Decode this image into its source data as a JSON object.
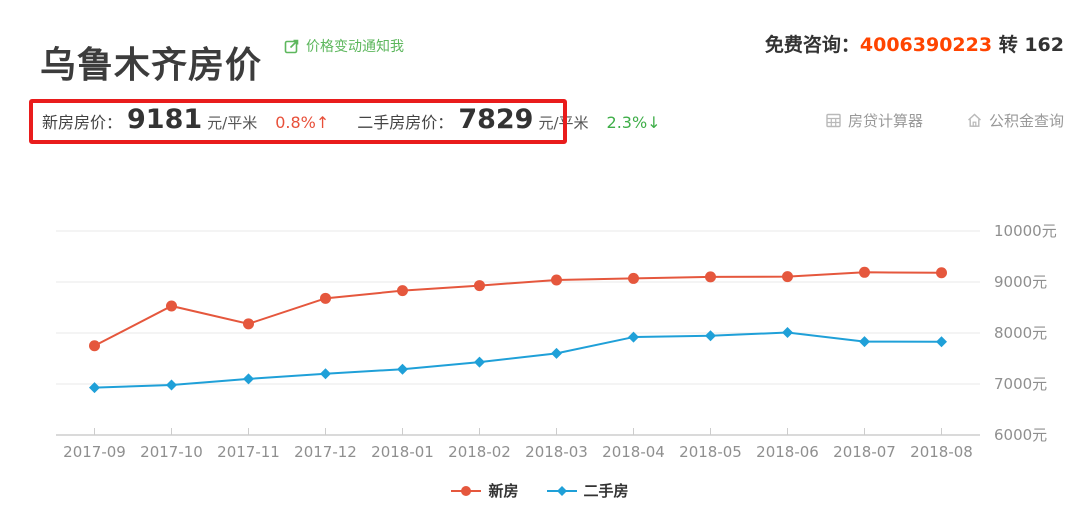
{
  "header": {
    "title": "乌鲁木齐房价",
    "notify_link_label": "价格变动通知我",
    "consult_label": "免费咨询：",
    "consult_phone": "4006390223",
    "consult_ext": "转 162"
  },
  "price_bar": {
    "new_label": "新房房价：",
    "new_price": "9181",
    "new_unit": "元/平米",
    "new_change": "0.8%↑",
    "second_label": "二手房房价：",
    "second_price": "7829",
    "second_unit": "元/平米",
    "second_change": "2.3%↓"
  },
  "tools": [
    {
      "label": "房贷计算器",
      "icon": "calculator-icon"
    },
    {
      "label": "公积金查询",
      "icon": "home-icon"
    }
  ],
  "chart_data": {
    "type": "line",
    "categories": [
      "2017-09",
      "2017-10",
      "2017-11",
      "2017-12",
      "2018-01",
      "2018-02",
      "2018-03",
      "2018-04",
      "2018-05",
      "2018-06",
      "2018-07",
      "2018-08"
    ],
    "series": [
      {
        "name": "新房",
        "marker": "circle",
        "color": "#e5573d",
        "values": [
          7750,
          8530,
          8180,
          8680,
          8830,
          8930,
          9040,
          9070,
          9100,
          9105,
          9190,
          9181
        ]
      },
      {
        "name": "二手房",
        "marker": "diamond",
        "color": "#1fa0d8",
        "values": [
          6930,
          6980,
          7100,
          7200,
          7290,
          7430,
          7600,
          7920,
          7945,
          8010,
          7830,
          7829
        ]
      }
    ],
    "title": "",
    "xlabel": "",
    "ylabel": "",
    "ylim": [
      6000,
      10000
    ],
    "y_tick_interval": 1000,
    "y_tick_labels": [
      "10000元",
      "9000元",
      "8000元",
      "7000元",
      "6000元"
    ],
    "y_axis_side": "right",
    "grid": true,
    "legend_position": "bottom"
  },
  "colors": {
    "new_series": "#e5573d",
    "second_series": "#1fa0d8",
    "up_red": "#e8503a",
    "down_green": "#3fae49",
    "phone_red": "#ff4400",
    "link_green": "#5db75d",
    "annotation_red": "#e91c1c",
    "gridline": "#e9e9e9",
    "axis_line": "#cdcdcd",
    "axis_label": "#8f8f8f"
  }
}
